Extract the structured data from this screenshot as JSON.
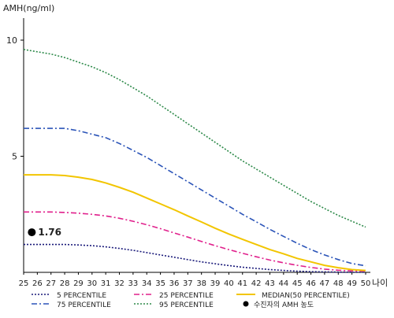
{
  "chart_data": {
    "type": "line",
    "ylabel": "AMH(ng/ml)",
    "xlabel": "나이",
    "x": [
      25,
      26,
      27,
      28,
      29,
      30,
      31,
      32,
      33,
      34,
      35,
      36,
      37,
      38,
      39,
      40,
      41,
      42,
      43,
      44,
      45,
      46,
      47,
      48,
      49,
      50
    ],
    "xlim": [
      25,
      50
    ],
    "ylim": [
      0,
      10.5
    ],
    "yticks": [
      5,
      10
    ],
    "grid": false,
    "legend_position": "bottom",
    "series": [
      {
        "name": "5 PERCENTILE",
        "color": "#1a1a7a",
        "style": "dotted",
        "values": [
          1.2,
          1.2,
          1.2,
          1.2,
          1.18,
          1.15,
          1.1,
          1.03,
          0.95,
          0.85,
          0.75,
          0.65,
          0.55,
          0.45,
          0.37,
          0.29,
          0.22,
          0.17,
          0.12,
          0.08,
          0.05,
          0.03,
          0.02,
          0.01,
          0.0,
          0.0
        ]
      },
      {
        "name": "25 PERCENTILE",
        "color": "#e0208c",
        "style": "dashdot",
        "values": [
          2.6,
          2.6,
          2.6,
          2.58,
          2.55,
          2.5,
          2.43,
          2.33,
          2.2,
          2.05,
          1.88,
          1.7,
          1.52,
          1.33,
          1.15,
          0.98,
          0.82,
          0.67,
          0.53,
          0.41,
          0.3,
          0.21,
          0.14,
          0.09,
          0.06,
          0.05
        ]
      },
      {
        "name": "MEDIAN(50 PERCENTILE)",
        "color": "#f2c500",
        "style": "solid",
        "values": [
          4.2,
          4.2,
          4.2,
          4.17,
          4.1,
          4.0,
          3.85,
          3.66,
          3.45,
          3.2,
          2.95,
          2.7,
          2.43,
          2.17,
          1.9,
          1.65,
          1.42,
          1.2,
          0.98,
          0.8,
          0.6,
          0.45,
          0.3,
          0.2,
          0.12,
          0.08
        ]
      },
      {
        "name": "75 PERCENTILE",
        "color": "#2b54b8",
        "style": "dashdot",
        "values": [
          6.2,
          6.2,
          6.2,
          6.2,
          6.1,
          5.95,
          5.8,
          5.55,
          5.25,
          4.95,
          4.6,
          4.25,
          3.9,
          3.55,
          3.2,
          2.85,
          2.5,
          2.18,
          1.85,
          1.55,
          1.25,
          0.98,
          0.75,
          0.55,
          0.38,
          0.28
        ]
      },
      {
        "name": "95 PERCENTILE",
        "color": "#2e8a4a",
        "style": "dotted",
        "values": [
          9.6,
          9.5,
          9.4,
          9.25,
          9.05,
          8.85,
          8.6,
          8.3,
          7.95,
          7.6,
          7.2,
          6.8,
          6.4,
          6.0,
          5.6,
          5.2,
          4.8,
          4.45,
          4.1,
          3.75,
          3.4,
          3.05,
          2.75,
          2.45,
          2.2,
          1.95
        ]
      }
    ],
    "marker": {
      "name": "수진자의 AMH 농도",
      "x": 26,
      "y": 1.76,
      "label": "1.76",
      "color": "#000000"
    },
    "legend": {
      "entries": [
        "5 PERCENTILE",
        "25 PERCENTILE",
        "MEDIAN(50 PERCENTILE)",
        "75 PERCENTILE",
        "95 PERCENTILE",
        "수진자의 AMH 농도"
      ]
    }
  }
}
